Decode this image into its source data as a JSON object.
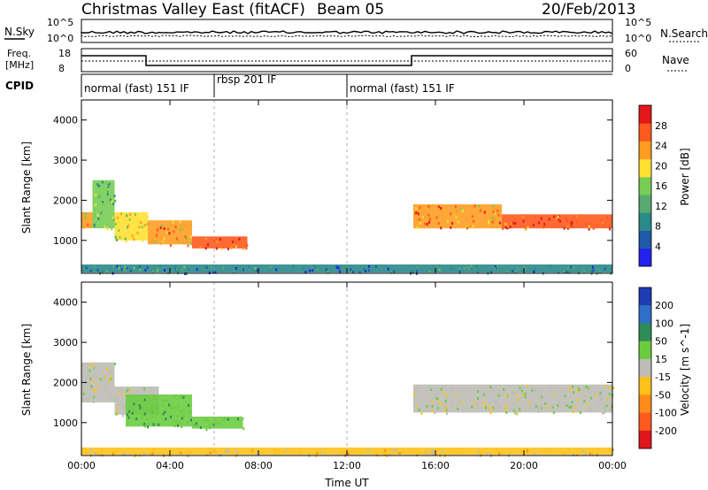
{
  "header": {
    "title": "Christmas Valley East (fitACF)",
    "beam": "Beam 05",
    "date": "20/Feb/2013"
  },
  "noise_panel": {
    "left_label": "N.Sky",
    "left_ticks": [
      "10^5",
      "10^0"
    ],
    "right_label": "N.Search",
    "right_ticks": [
      "10^5",
      "10^0"
    ]
  },
  "freq_panel": {
    "left_label_1": "Freq.",
    "left_label_2": "[MHz]",
    "left_ticks": [
      "18",
      "8"
    ],
    "right_label": "Nave",
    "right_ticks": [
      "60",
      "0"
    ],
    "cpid_label": "CPID"
  },
  "cpid_segments": [
    {
      "label": "normal (fast) 151 IF",
      "start_hour": 0,
      "end_hour": 6.0
    },
    {
      "label": "rbsp 201 IF",
      "start_hour": 6.0,
      "end_hour": 12.0
    },
    {
      "label": "normal (fast) 151 IF",
      "start_hour": 12.0,
      "end_hour": 24
    }
  ],
  "chart_data": [
    {
      "type": "heatmap",
      "title": "",
      "xlabel": "Time UT",
      "ylabel": "Slant Range [km]",
      "xlim": [
        0,
        24
      ],
      "ylim": [
        180,
        4500
      ],
      "x_tick_labels": [
        "00:00",
        "04:00",
        "08:00",
        "12:00",
        "16:00",
        "20:00",
        "00:00"
      ],
      "y_tick_labels": [
        "1000",
        "2000",
        "3000",
        "4000"
      ],
      "colorbar": {
        "label": "Power [dB]",
        "tick_labels": [
          "4",
          "8",
          "12",
          "16",
          "20",
          "24",
          "28"
        ],
        "colors": [
          "#2222ee",
          "#1f5aa8",
          "#2a8a8a",
          "#5aa872",
          "#77cc55",
          "#ffe033",
          "#ff9d22",
          "#ff5a1e",
          "#e3161a"
        ]
      },
      "bands": [
        {
          "t0": 0.0,
          "t1": 0.5,
          "r0": 1300,
          "r1": 1700,
          "value": 22
        },
        {
          "t0": 0.5,
          "t1": 1.5,
          "r0": 1300,
          "r1": 2500,
          "value": 14
        },
        {
          "t0": 1.5,
          "t1": 3.0,
          "r0": 1000,
          "r1": 1700,
          "value": 18
        },
        {
          "t0": 3.0,
          "t1": 5.0,
          "r0": 900,
          "r1": 1500,
          "value": 22
        },
        {
          "t0": 5.0,
          "t1": 7.5,
          "r0": 800,
          "r1": 1100,
          "value": 27
        },
        {
          "t0": 15.0,
          "t1": 19.0,
          "r0": 1300,
          "r1": 1900,
          "value": 24
        },
        {
          "t0": 19.0,
          "t1": 24.0,
          "r0": 1300,
          "r1": 1650,
          "value": 27
        },
        {
          "t0": 0.0,
          "t1": 24.0,
          "r0": 200,
          "r1": 400,
          "value": 8
        }
      ]
    },
    {
      "type": "heatmap",
      "title": "",
      "xlabel": "Time UT",
      "ylabel": "Slant Range [km]",
      "xlim": [
        0,
        24
      ],
      "ylim": [
        180,
        4500
      ],
      "x_tick_labels": [
        "00:00",
        "04:00",
        "08:00",
        "12:00",
        "16:00",
        "20:00",
        "00:00"
      ],
      "y_tick_labels": [
        "1000",
        "2000",
        "3000",
        "4000"
      ],
      "colorbar": {
        "label": "Velocity [m s^-1]",
        "tick_labels": [
          "200",
          "100",
          "50",
          "15",
          "-15",
          "-50",
          "-100",
          "-200"
        ],
        "colors": [
          "#1e3cb4",
          "#2f6fc8",
          "#2e8b57",
          "#6ccc40",
          "#bdbdb5",
          "#ffc21a",
          "#ff8c1a",
          "#ff5a1e",
          "#e0161a"
        ]
      },
      "bands": [
        {
          "t0": 0.0,
          "t1": 1.5,
          "r0": 1500,
          "r1": 2500,
          "value": 0
        },
        {
          "t0": 1.5,
          "t1": 3.5,
          "r0": 1200,
          "r1": 1900,
          "value": 0
        },
        {
          "t0": 2.0,
          "t1": 5.0,
          "r0": 900,
          "r1": 1700,
          "value": 45
        },
        {
          "t0": 5.0,
          "t1": 7.3,
          "r0": 850,
          "r1": 1150,
          "value": 35
        },
        {
          "t0": 15.0,
          "t1": 24.0,
          "r0": 1250,
          "r1": 1950,
          "value": 0
        },
        {
          "t0": 0.0,
          "t1": 24.0,
          "r0": 200,
          "r1": 380,
          "value": -30
        }
      ]
    }
  ]
}
